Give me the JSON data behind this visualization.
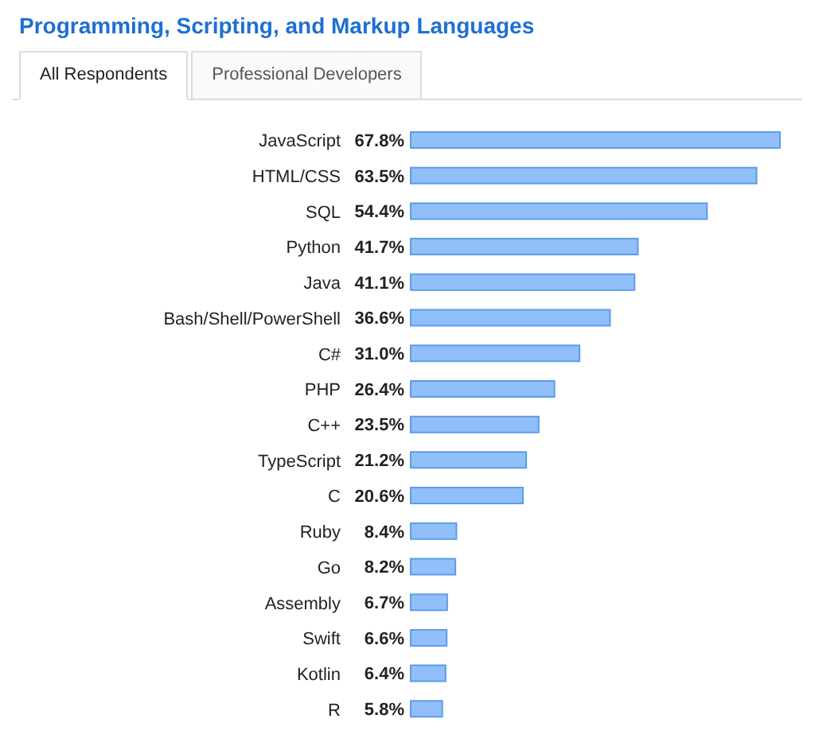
{
  "chart_data": {
    "type": "bar",
    "orientation": "horizontal",
    "title": "Programming, Scripting, and Markup Languages",
    "annotations": [
      "All Respondents",
      "Professional Developers"
    ],
    "categories": [
      "JavaScript",
      "HTML/CSS",
      "SQL",
      "Python",
      "Java",
      "Bash/Shell/PowerShell",
      "C#",
      "PHP",
      "C++",
      "TypeScript",
      "C",
      "Ruby",
      "Go",
      "Assembly",
      "Swift",
      "Kotlin",
      "R"
    ],
    "values": [
      67.8,
      63.5,
      54.4,
      41.7,
      41.1,
      36.6,
      31.0,
      26.4,
      23.5,
      21.2,
      20.6,
      8.4,
      8.2,
      6.7,
      6.6,
      6.4,
      5.8
    ],
    "value_labels": [
      "67.8%",
      "63.5%",
      "54.4%",
      "41.7%",
      "41.1%",
      "36.6%",
      "31.0%",
      "26.4%",
      "23.5%",
      "21.2%",
      "20.6%",
      "8.4%",
      "8.2%",
      "6.7%",
      "6.6%",
      "6.4%",
      "5.8%"
    ],
    "color": "#90bff9"
  }
}
